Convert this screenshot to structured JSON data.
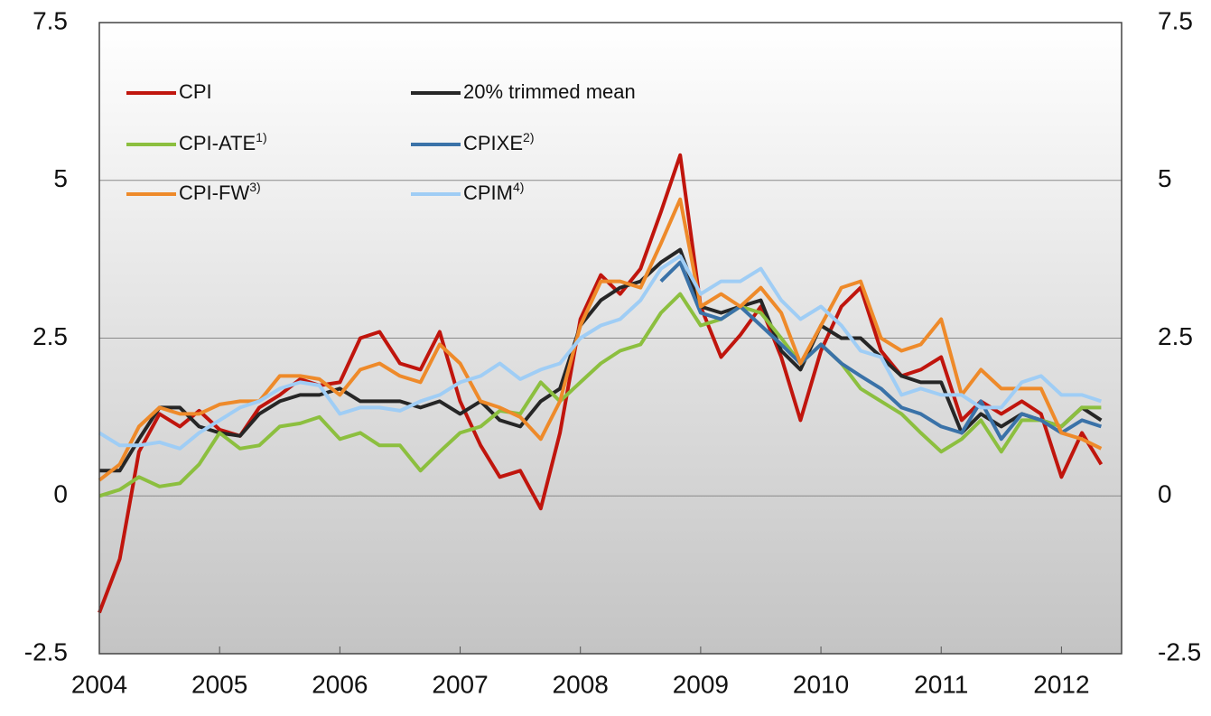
{
  "chart_data": {
    "type": "line",
    "x": [
      2004,
      2004.17,
      2004.33,
      2004.5,
      2004.67,
      2004.83,
      2005,
      2005.17,
      2005.33,
      2005.5,
      2005.67,
      2005.83,
      2006,
      2006.17,
      2006.33,
      2006.5,
      2006.67,
      2006.83,
      2007,
      2007.17,
      2007.33,
      2007.5,
      2007.67,
      2007.83,
      2008,
      2008.17,
      2008.33,
      2008.5,
      2008.67,
      2008.83,
      2009,
      2009.17,
      2009.33,
      2009.5,
      2009.67,
      2009.83,
      2010,
      2010.17,
      2010.33,
      2010.5,
      2010.67,
      2010.83,
      2011,
      2011.17,
      2011.33,
      2011.5,
      2011.67,
      2011.83,
      2012,
      2012.17,
      2012.33
    ],
    "series": [
      {
        "name": "CPI",
        "color": "#c0150d",
        "values": [
          -1.85,
          -1.0,
          0.7,
          1.3,
          1.1,
          1.35,
          1.05,
          0.95,
          1.4,
          1.6,
          1.85,
          1.75,
          1.8,
          2.5,
          2.6,
          2.1,
          2.0,
          2.6,
          1.5,
          0.8,
          0.3,
          0.4,
          -0.2,
          1.0,
          2.8,
          3.5,
          3.2,
          3.6,
          4.5,
          5.4,
          3.0,
          2.2,
          2.55,
          3.0,
          2.2,
          1.2,
          2.3,
          3.0,
          3.3,
          2.3,
          1.9,
          2.0,
          2.2,
          1.2,
          1.5,
          1.3,
          1.5,
          1.3,
          0.3,
          1.0,
          0.5
        ]
      },
      {
        "name": "20% trimmed mean",
        "color": "#262626",
        "values": [
          0.4,
          0.4,
          0.9,
          1.4,
          1.4,
          1.1,
          1.0,
          0.95,
          1.3,
          1.5,
          1.6,
          1.6,
          1.7,
          1.5,
          1.5,
          1.5,
          1.4,
          1.5,
          1.3,
          1.5,
          1.2,
          1.1,
          1.5,
          1.7,
          2.7,
          3.1,
          3.3,
          3.4,
          3.7,
          3.9,
          3.0,
          2.9,
          3.0,
          3.1,
          2.3,
          2.0,
          2.7,
          2.5,
          2.5,
          2.2,
          1.9,
          1.8,
          1.8,
          1.0,
          1.3,
          1.1,
          1.3,
          1.2,
          1.1,
          1.4,
          1.2
        ]
      },
      {
        "name": "CPI-ATE",
        "footnote": "1)",
        "color": "#8cbf3f",
        "values": [
          0.0,
          0.1,
          0.3,
          0.15,
          0.2,
          0.5,
          1.0,
          0.75,
          0.8,
          1.1,
          1.15,
          1.25,
          0.9,
          1.0,
          0.8,
          0.8,
          0.4,
          0.7,
          1.0,
          1.1,
          1.35,
          1.3,
          1.8,
          1.5,
          1.8,
          2.1,
          2.3,
          2.4,
          2.9,
          3.2,
          2.7,
          2.8,
          3.0,
          2.9,
          2.5,
          2.1,
          2.4,
          2.1,
          1.7,
          1.5,
          1.3,
          1.0,
          0.7,
          0.9,
          1.2,
          0.7,
          1.2,
          1.2,
          1.1,
          1.4,
          1.4
        ]
      },
      {
        "name": "CPIXE",
        "footnote": "2)",
        "color": "#3a72a8",
        "values": [
          null,
          null,
          null,
          null,
          null,
          null,
          null,
          null,
          null,
          null,
          null,
          null,
          null,
          null,
          null,
          null,
          null,
          null,
          null,
          null,
          null,
          null,
          null,
          null,
          null,
          null,
          null,
          null,
          3.4,
          3.7,
          2.9,
          2.8,
          3.0,
          2.7,
          2.4,
          2.1,
          2.4,
          2.1,
          1.9,
          1.7,
          1.4,
          1.3,
          1.1,
          1.0,
          1.5,
          0.9,
          1.3,
          1.2,
          1.0,
          1.2,
          1.1
        ]
      },
      {
        "name": "CPI-FW",
        "footnote": "3)",
        "color": "#ee8a2a",
        "values": [
          0.25,
          0.5,
          1.1,
          1.4,
          1.3,
          1.3,
          1.45,
          1.5,
          1.5,
          1.9,
          1.9,
          1.85,
          1.6,
          2.0,
          2.1,
          1.9,
          1.8,
          2.4,
          2.1,
          1.5,
          1.4,
          1.25,
          0.9,
          1.5,
          2.7,
          3.4,
          3.4,
          3.3,
          4.0,
          4.7,
          3.0,
          3.2,
          3.0,
          3.3,
          2.9,
          2.1,
          2.7,
          3.3,
          3.4,
          2.5,
          2.3,
          2.4,
          2.8,
          1.6,
          2.0,
          1.7,
          1.7,
          1.7,
          1.0,
          0.9,
          0.75
        ]
      },
      {
        "name": "CPIM",
        "footnote": "4)",
        "color": "#9fcdf5",
        "values": [
          1.0,
          0.8,
          0.8,
          0.85,
          0.75,
          1.0,
          1.2,
          1.4,
          1.5,
          1.7,
          1.8,
          1.75,
          1.3,
          1.4,
          1.4,
          1.35,
          1.5,
          1.6,
          1.8,
          1.9,
          2.1,
          1.85,
          2.0,
          2.1,
          2.5,
          2.7,
          2.8,
          3.1,
          3.6,
          3.8,
          3.2,
          3.4,
          3.4,
          3.6,
          3.1,
          2.8,
          3.0,
          2.7,
          2.3,
          2.2,
          1.6,
          1.7,
          1.6,
          1.6,
          1.4,
          1.4,
          1.8,
          1.9,
          1.6,
          1.6,
          1.5
        ]
      }
    ],
    "xlim": [
      2004,
      2012.5
    ],
    "xticks": [
      2004,
      2005,
      2006,
      2007,
      2008,
      2009,
      2010,
      2011,
      2012
    ],
    "ylim": [
      -2.5,
      7.5
    ],
    "yticks": [
      -2.5,
      0,
      2.5,
      5,
      7.5
    ],
    "y2lim": [
      -2.5,
      7.5
    ],
    "y2ticks": [
      -2.5,
      0,
      2.5,
      5,
      7.5
    ],
    "grid": true,
    "legend": "upper left"
  }
}
